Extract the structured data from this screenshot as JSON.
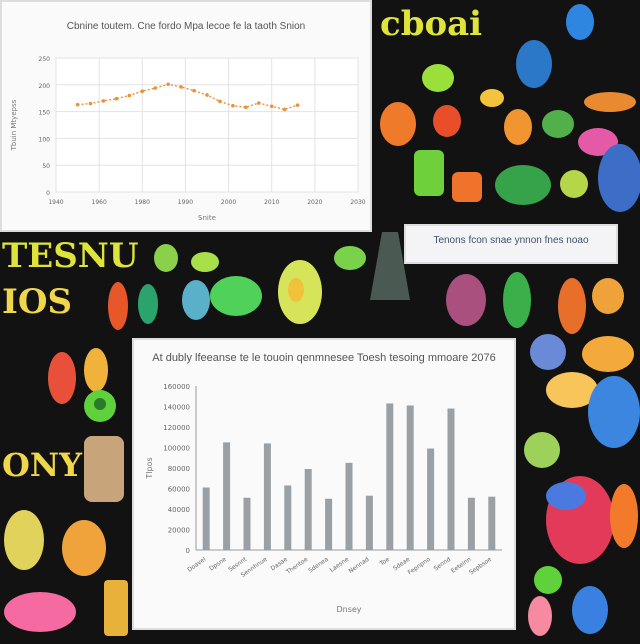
{
  "decor_lettering": {
    "top_right": "cboai",
    "left_1": "TESNU",
    "left_2": "IOS",
    "left_3": "ONY"
  },
  "panels": [
    {
      "title": "Cbnine toutem. Cne fordo Mpa lecoe fe la taoth Snion",
      "chart_data": {
        "type": "line",
        "title": "Cbnine toutem. Cne fordo Mpa lecoe fe la taoth Snion",
        "xlabel": "Snite",
        "ylabel": "Tbuin Mtyepss",
        "x_ticks": [
          "1940",
          "1960",
          "1980",
          "1990",
          "2000",
          "2010",
          "2020",
          "2030"
        ],
        "y_ticks": [
          "0",
          "50",
          "100",
          "150",
          "200",
          "250"
        ],
        "ylim": [
          0,
          250
        ],
        "xlim": [
          0,
          7
        ],
        "series": [
          {
            "color": "#e8923a",
            "x": [
              0.5,
              0.8,
              1.1,
              1.4,
              1.7,
              2.0,
              2.3,
              2.6,
              2.9,
              3.2,
              3.5,
              3.8,
              4.1,
              4.4,
              4.7,
              5.0,
              5.3,
              5.6
            ],
            "y": [
              163,
              165,
              170,
              174,
              180,
              188,
              194,
              201,
              196,
              189,
              181,
              169,
              161,
              158,
              166,
              160,
              154,
              162
            ]
          }
        ],
        "grid": true
      }
    },
    {
      "title": "At dubly lfeeanse te le touoin qenmnesee Toesh tesoing mmoare 2076",
      "chart_data": {
        "type": "bar",
        "title": "At dubly lfeeanse te le touoin qenmnesee Toesh tesoing mmoare 2076",
        "xlabel": "Dnsey",
        "ylabel": "Tlpos",
        "categories": [
          "Doavel",
          "Dpsne",
          "Sesnnt",
          "Sennhnue",
          "Dasae",
          "Thentoe",
          "Sdenea",
          "Laesne",
          "Nennad",
          "Toe",
          "Sdeae",
          "Fepnpno",
          "Sennd",
          "Eeteinn",
          "Sepbsoe"
        ],
        "values": [
          61,
          105,
          51,
          104,
          63,
          79,
          50,
          85,
          53,
          143,
          141,
          99,
          138,
          51,
          52
        ],
        "y_ticks": [
          "0",
          "20000",
          "40000",
          "60000",
          "80000",
          "100000",
          "120000",
          "140000",
          "160000"
        ],
        "ylim": [
          0,
          160
        ],
        "color": "#9aa0a4"
      }
    }
  ],
  "caption_box": {
    "text": "Tenons fcon snae ynnon fnes noao"
  }
}
